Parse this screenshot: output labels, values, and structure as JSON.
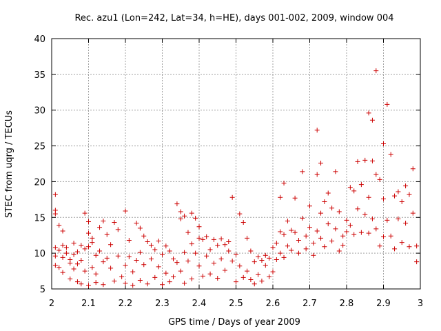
{
  "chart_data": {
    "type": "scatter",
    "title": "Rec. azu1 (Lon=242, Lat=34, h=HE), days 001-002, 2009, window 004",
    "xlabel": "GPS time / Days of year 2009",
    "ylabel": "STEC from uqrg / TECUs",
    "xlim": [
      2,
      3
    ],
    "ylim": [
      5,
      40
    ],
    "xticks": [
      "2",
      "2.1",
      "2.2",
      "2.3",
      "2.4",
      "2.5",
      "2.6",
      "2.7",
      "2.8",
      "2.9",
      "3"
    ],
    "yticks": [
      "5",
      "10",
      "15",
      "20",
      "25",
      "30",
      "35",
      "40"
    ],
    "xtick_values": [
      2,
      2.1,
      2.2,
      2.3,
      2.4,
      2.5,
      2.6,
      2.7,
      2.8,
      2.9,
      3
    ],
    "ytick_values": [
      5,
      10,
      15,
      20,
      25,
      30,
      35,
      40
    ],
    "grid": true,
    "marker": "plus",
    "color": "#cc0000",
    "series": [
      {
        "points": [
          [
            2.01,
            18.2
          ],
          [
            2.01,
            16.0
          ],
          [
            2.01,
            15.5
          ],
          [
            2.01,
            10.8
          ],
          [
            2.01,
            9.6
          ],
          [
            2.01,
            8.3
          ],
          [
            2.02,
            13.9
          ],
          [
            2.02,
            10.4
          ],
          [
            2.02,
            8.0
          ],
          [
            2.03,
            13.1
          ],
          [
            2.03,
            11.1
          ],
          [
            2.03,
            9.4
          ],
          [
            2.03,
            7.3
          ],
          [
            2.04,
            10.8
          ],
          [
            2.04,
            10.0
          ],
          [
            2.05,
            9.1
          ],
          [
            2.05,
            8.6
          ],
          [
            2.05,
            6.4
          ],
          [
            2.06,
            11.4
          ],
          [
            2.06,
            9.8
          ],
          [
            2.06,
            7.8
          ],
          [
            2.07,
            10.2
          ],
          [
            2.07,
            8.5
          ],
          [
            2.07,
            6.0
          ],
          [
            2.08,
            11.1
          ],
          [
            2.08,
            9.0
          ],
          [
            2.08,
            5.7
          ],
          [
            2.09,
            15.6
          ],
          [
            2.09,
            10.6
          ],
          [
            2.09,
            7.5
          ],
          [
            2.1,
            14.4
          ],
          [
            2.1,
            12.8
          ],
          [
            2.1,
            10.9
          ],
          [
            2.1,
            5.5
          ],
          [
            2.11,
            12.1
          ],
          [
            2.11,
            11.5
          ],
          [
            2.11,
            8.0
          ],
          [
            2.12,
            9.7
          ],
          [
            2.12,
            7.1
          ],
          [
            2.12,
            5.9
          ],
          [
            2.13,
            13.6
          ],
          [
            2.13,
            10.3
          ],
          [
            2.14,
            14.5
          ],
          [
            2.14,
            8.8
          ],
          [
            2.14,
            5.6
          ],
          [
            2.15,
            12.6
          ],
          [
            2.15,
            9.3
          ],
          [
            2.16,
            11.2
          ],
          [
            2.16,
            7.9
          ],
          [
            2.17,
            14.3
          ],
          [
            2.17,
            6.1
          ],
          [
            2.18,
            13.3
          ],
          [
            2.18,
            9.6
          ],
          [
            2.19,
            6.7
          ],
          [
            2.2,
            15.9
          ],
          [
            2.2,
            8.3
          ],
          [
            2.2,
            5.8
          ],
          [
            2.21,
            11.8
          ],
          [
            2.21,
            9.5
          ],
          [
            2.22,
            7.4
          ],
          [
            2.22,
            5.5
          ],
          [
            2.23,
            14.2
          ],
          [
            2.23,
            9.0
          ],
          [
            2.24,
            13.5
          ],
          [
            2.24,
            10.1
          ],
          [
            2.24,
            6.2
          ],
          [
            2.25,
            12.4
          ],
          [
            2.25,
            8.4
          ],
          [
            2.26,
            11.6
          ],
          [
            2.26,
            5.7
          ],
          [
            2.27,
            11.1
          ],
          [
            2.27,
            9.2
          ],
          [
            2.28,
            10.5
          ],
          [
            2.28,
            6.6
          ],
          [
            2.29,
            11.7
          ],
          [
            2.29,
            8.1
          ],
          [
            2.3,
            9.8
          ],
          [
            2.3,
            5.6
          ],
          [
            2.31,
            11.0
          ],
          [
            2.31,
            7.2
          ],
          [
            2.32,
            10.3
          ],
          [
            2.32,
            6.0
          ],
          [
            2.33,
            9.2
          ],
          [
            2.33,
            6.7
          ],
          [
            2.34,
            16.9
          ],
          [
            2.34,
            8.7
          ],
          [
            2.35,
            15.8
          ],
          [
            2.35,
            14.8
          ],
          [
            2.35,
            7.5
          ],
          [
            2.36,
            15.2
          ],
          [
            2.36,
            10.1
          ],
          [
            2.36,
            5.8
          ],
          [
            2.37,
            12.9
          ],
          [
            2.37,
            8.9
          ],
          [
            2.38,
            15.6
          ],
          [
            2.38,
            11.3
          ],
          [
            2.38,
            6.4
          ],
          [
            2.39,
            14.9
          ],
          [
            2.39,
            10.0
          ],
          [
            2.4,
            13.7
          ],
          [
            2.4,
            12.1
          ],
          [
            2.4,
            8.2
          ],
          [
            2.41,
            11.9
          ],
          [
            2.41,
            6.8
          ],
          [
            2.42,
            12.3
          ],
          [
            2.42,
            9.6
          ],
          [
            2.43,
            10.5
          ],
          [
            2.43,
            7.1
          ],
          [
            2.44,
            11.9
          ],
          [
            2.44,
            8.6
          ],
          [
            2.45,
            11.1
          ],
          [
            2.45,
            6.5
          ],
          [
            2.46,
            12.0
          ],
          [
            2.46,
            9.2
          ],
          [
            2.47,
            11.2
          ],
          [
            2.47,
            7.6
          ],
          [
            2.48,
            11.6
          ],
          [
            2.48,
            10.3
          ],
          [
            2.49,
            17.8
          ],
          [
            2.49,
            8.9
          ],
          [
            2.5,
            9.8
          ],
          [
            2.5,
            6.0
          ],
          [
            2.51,
            15.5
          ],
          [
            2.51,
            8.2
          ],
          [
            2.52,
            14.3
          ],
          [
            2.52,
            6.6
          ],
          [
            2.53,
            12.1
          ],
          [
            2.53,
            7.5
          ],
          [
            2.54,
            10.3
          ],
          [
            2.54,
            6.3
          ],
          [
            2.55,
            8.8
          ],
          [
            2.55,
            5.7
          ],
          [
            2.56,
            9.5
          ],
          [
            2.56,
            7.0
          ],
          [
            2.57,
            9.0
          ],
          [
            2.57,
            6.1
          ],
          [
            2.58,
            9.7
          ],
          [
            2.58,
            8.3
          ],
          [
            2.59,
            9.3
          ],
          [
            2.59,
            6.7
          ],
          [
            2.6,
            10.8
          ],
          [
            2.6,
            7.4
          ],
          [
            2.61,
            11.4
          ],
          [
            2.61,
            9.1
          ],
          [
            2.62,
            17.8
          ],
          [
            2.62,
            13.0
          ],
          [
            2.62,
            10.0
          ],
          [
            2.63,
            19.8
          ],
          [
            2.63,
            12.6
          ],
          [
            2.63,
            9.4
          ],
          [
            2.64,
            14.5
          ],
          [
            2.64,
            11.0
          ],
          [
            2.65,
            13.2
          ],
          [
            2.65,
            10.4
          ],
          [
            2.66,
            17.7
          ],
          [
            2.66,
            12.9
          ],
          [
            2.67,
            11.8
          ],
          [
            2.67,
            10.0
          ],
          [
            2.68,
            21.4
          ],
          [
            2.68,
            14.9
          ],
          [
            2.69,
            12.4
          ],
          [
            2.69,
            10.6
          ],
          [
            2.7,
            16.6
          ],
          [
            2.7,
            13.6
          ],
          [
            2.71,
            11.4
          ],
          [
            2.71,
            9.7
          ],
          [
            2.72,
            27.2
          ],
          [
            2.72,
            21.0
          ],
          [
            2.72,
            13.1
          ],
          [
            2.73,
            22.6
          ],
          [
            2.73,
            15.6
          ],
          [
            2.73,
            12.1
          ],
          [
            2.74,
            17.2
          ],
          [
            2.74,
            10.9
          ],
          [
            2.75,
            18.4
          ],
          [
            2.75,
            14.1
          ],
          [
            2.76,
            16.3
          ],
          [
            2.76,
            11.7
          ],
          [
            2.77,
            21.4
          ],
          [
            2.77,
            13.4
          ],
          [
            2.78,
            15.8
          ],
          [
            2.78,
            10.3
          ],
          [
            2.79,
            12.4
          ],
          [
            2.79,
            11.1
          ],
          [
            2.8,
            14.6
          ],
          [
            2.8,
            13.0
          ],
          [
            2.81,
            19.2
          ],
          [
            2.81,
            13.9
          ],
          [
            2.82,
            18.7
          ],
          [
            2.82,
            12.6
          ],
          [
            2.83,
            22.8
          ],
          [
            2.83,
            16.2
          ],
          [
            2.84,
            19.6
          ],
          [
            2.84,
            12.9
          ],
          [
            2.85,
            23.0
          ],
          [
            2.85,
            15.4
          ],
          [
            2.86,
            29.6
          ],
          [
            2.86,
            17.8
          ],
          [
            2.86,
            12.8
          ],
          [
            2.87,
            28.6
          ],
          [
            2.87,
            22.9
          ],
          [
            2.87,
            14.8
          ],
          [
            2.88,
            35.5
          ],
          [
            2.88,
            21.0
          ],
          [
            2.88,
            13.4
          ],
          [
            2.89,
            20.3
          ],
          [
            2.89,
            11.0
          ],
          [
            2.9,
            25.3
          ],
          [
            2.9,
            17.6
          ],
          [
            2.9,
            12.3
          ],
          [
            2.91,
            30.8
          ],
          [
            2.91,
            14.6
          ],
          [
            2.92,
            23.8
          ],
          [
            2.92,
            12.4
          ],
          [
            2.93,
            18.0
          ],
          [
            2.93,
            10.6
          ],
          [
            2.94,
            18.6
          ],
          [
            2.94,
            14.8
          ],
          [
            2.95,
            17.2
          ],
          [
            2.95,
            11.5
          ],
          [
            2.96,
            19.4
          ],
          [
            2.96,
            14.2
          ],
          [
            2.97,
            18.2
          ],
          [
            2.97,
            10.9
          ],
          [
            2.98,
            21.8
          ],
          [
            2.98,
            15.6
          ],
          [
            2.99,
            11.0
          ],
          [
            2.99,
            8.8
          ]
        ]
      }
    ]
  }
}
